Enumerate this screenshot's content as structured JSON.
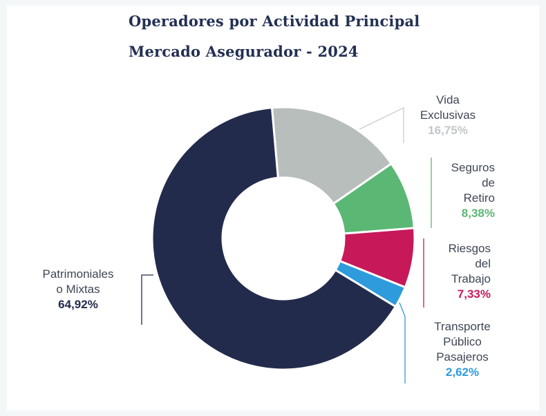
{
  "title": "Operadores por Actividad Principal",
  "subtitle": "Mercado Asegurador - 2024",
  "chart_data": {
    "type": "pie",
    "variant": "donut",
    "title": "Operadores por Actividad Principal",
    "subtitle": "Mercado Asegurador - 2024",
    "slices": [
      {
        "label_lines": [
          "Vida",
          "Exclusivas"
        ],
        "value": 16.75,
        "value_text": "16,75%",
        "color": "#b8bebb"
      },
      {
        "label_lines": [
          "Seguros",
          "de",
          "Retiro"
        ],
        "value": 8.38,
        "value_text": "8,38%",
        "color": "#5bb774"
      },
      {
        "label_lines": [
          "Riesgos",
          "del",
          "Trabajo"
        ],
        "value": 7.33,
        "value_text": "7,33%",
        "color": "#c7185a"
      },
      {
        "label_lines": [
          "Transporte",
          "Público",
          "Pasajeros"
        ],
        "value": 2.62,
        "value_text": "2,62%",
        "color": "#2d9bdc"
      },
      {
        "label_lines": [
          "Patrimoniales",
          "o Mixtas"
        ],
        "value": 64.92,
        "value_text": "64,92%",
        "color": "#232b4d"
      }
    ]
  }
}
